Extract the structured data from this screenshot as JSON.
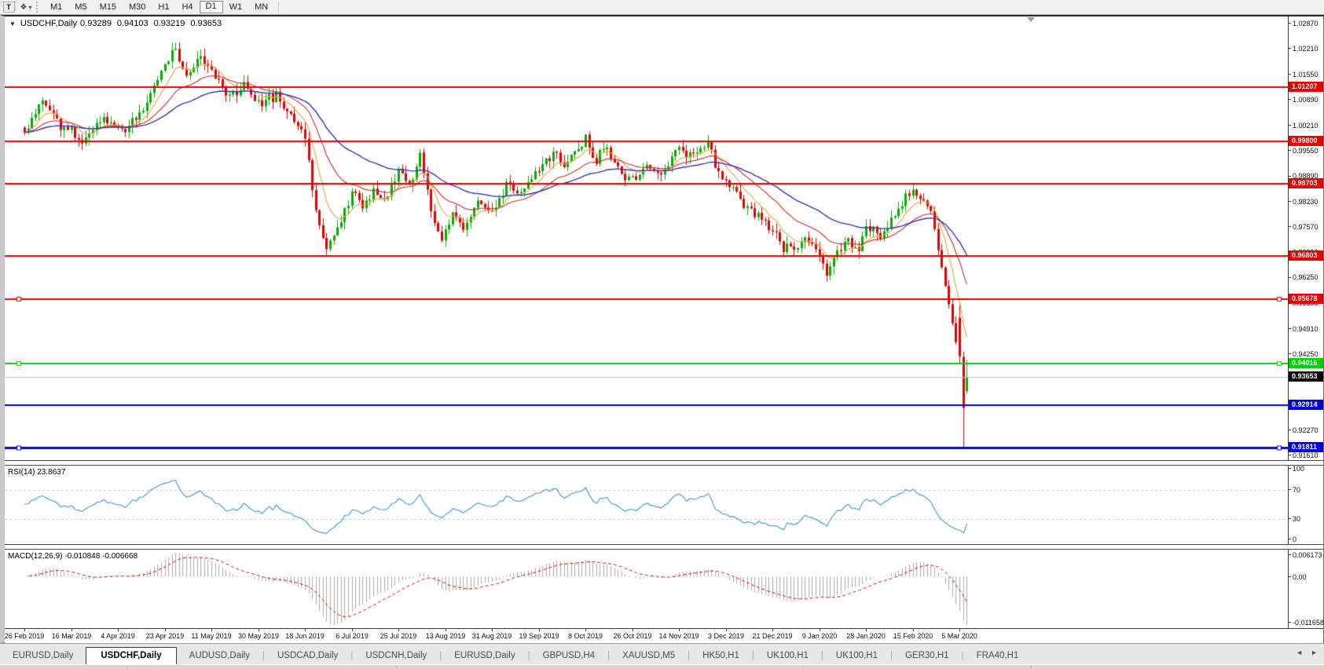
{
  "toolbar": {
    "text_tool_icon": "T",
    "objects_tool_icon": "❖",
    "dropdown_caret_icon": "▾",
    "timeframes": [
      "M1",
      "M5",
      "M15",
      "M30",
      "H1",
      "H4",
      "D1",
      "W1",
      "MN"
    ],
    "active_timeframe": "D1"
  },
  "chart": {
    "collapse_icon": "▼",
    "title_symbol": "USDCHF,Daily",
    "ohlc": {
      "open": "0.93289",
      "high": "0.94103",
      "low": "0.93219",
      "close": "0.93653"
    },
    "price_ticks": [
      "1.02870",
      "1.02210",
      "1.01550",
      "1.00890",
      "1.00210",
      "0.99550",
      "0.98890",
      "0.98230",
      "0.97570",
      "0.96910",
      "0.96250",
      "0.95590",
      "0.94910",
      "0.94250",
      "0.93590",
      "0.92930",
      "0.92270",
      "0.91610"
    ],
    "levels": [
      {
        "label": "1.01207",
        "price": 1.01207,
        "color": "#e60000",
        "width": 2,
        "handles": false
      },
      {
        "label": "0.99800",
        "price": 0.998,
        "color": "#e60000",
        "width": 2,
        "handles": false
      },
      {
        "label": "0.98703",
        "price": 0.98703,
        "color": "#e60000",
        "width": 2,
        "handles": false
      },
      {
        "label": "0.96803",
        "price": 0.96803,
        "color": "#e60000",
        "width": 2,
        "handles": false
      },
      {
        "label": "0.95678",
        "price": 0.95678,
        "color": "#e60000",
        "width": 2,
        "handles": true
      },
      {
        "label": "0.94016",
        "price": 0.94016,
        "color": "#00d200",
        "width": 2,
        "handles": true
      },
      {
        "label": "0.92914",
        "price": 0.92914,
        "color": "#0000d8",
        "width": 2,
        "handles": false
      },
      {
        "label": "0.91811",
        "price": 0.91811,
        "color": "#0000d8",
        "width": 3,
        "handles": true
      }
    ],
    "current_price": {
      "label": "0.93653",
      "price": 0.93653,
      "line_color": "#c0c0c0",
      "badge_color": "#000000"
    },
    "date_ticks": [
      "26 Feb 2019",
      "16 Mar 2019",
      "4 Apr 2019",
      "23 Apr 2019",
      "11 May 2019",
      "30 May 2019",
      "18 Jun 2019",
      "6 Jul 2019",
      "25 Jul 2019",
      "13 Aug 2019",
      "31 Aug 2019",
      "19 Sep 2019",
      "8 Oct 2019",
      "26 Oct 2019",
      "14 Nov 2019",
      "3 Dec 2019",
      "21 Dec 2019",
      "9 Jan 2020",
      "28 Jan 2020",
      "15 Feb 2020",
      "5 Mar 2020"
    ],
    "series": {
      "candle_count": 263,
      "candles_per_tick": 13,
      "close_anchors": [
        [
          0,
          1.0005
        ],
        [
          5,
          1.0085
        ],
        [
          10,
          1.0025
        ],
        [
          16,
          0.9985
        ],
        [
          22,
          1.004
        ],
        [
          28,
          1.0005
        ],
        [
          33,
          1.007
        ],
        [
          38,
          1.017
        ],
        [
          42,
          1.0225
        ],
        [
          45,
          1.015
        ],
        [
          49,
          1.0205
        ],
        [
          53,
          1.015
        ],
        [
          57,
          1.01
        ],
        [
          61,
          1.013
        ],
        [
          65,
          1.0075
        ],
        [
          70,
          1.01
        ],
        [
          75,
          1.004
        ],
        [
          78,
          0.999
        ],
        [
          81,
          0.979
        ],
        [
          84,
          0.97
        ],
        [
          88,
          0.977
        ],
        [
          91,
          0.985
        ],
        [
          94,
          0.98
        ],
        [
          97,
          0.9855
        ],
        [
          100,
          0.9815
        ],
        [
          104,
          0.9905
        ],
        [
          107,
          0.987
        ],
        [
          110,
          0.9945
        ],
        [
          113,
          0.98
        ],
        [
          116,
          0.9715
        ],
        [
          119,
          0.979
        ],
        [
          122,
          0.975
        ],
        [
          126,
          0.9825
        ],
        [
          130,
          0.9795
        ],
        [
          134,
          0.987
        ],
        [
          138,
          0.984
        ],
        [
          143,
          0.9905
        ],
        [
          147,
          0.995
        ],
        [
          150,
          0.991
        ],
        [
          153,
          0.9955
        ],
        [
          156,
          0.9985
        ],
        [
          159,
          0.9935
        ],
        [
          162,
          0.9965
        ],
        [
          165,
          0.9905
        ],
        [
          169,
          0.9875
        ],
        [
          173,
          0.992
        ],
        [
          177,
          0.9895
        ],
        [
          182,
          0.9965
        ],
        [
          186,
          0.9935
        ],
        [
          190,
          0.9985
        ],
        [
          193,
          0.9895
        ],
        [
          197,
          0.9855
        ],
        [
          201,
          0.9805
        ],
        [
          205,
          0.978
        ],
        [
          208,
          0.9745
        ],
        [
          211,
          0.9705
        ],
        [
          214,
          0.969
        ],
        [
          217,
          0.973
        ],
        [
          220,
          0.9695
        ],
        [
          223,
          0.9635
        ],
        [
          226,
          0.9695
        ],
        [
          229,
          0.9725
        ],
        [
          232,
          0.969
        ],
        [
          234,
          0.9765
        ],
        [
          238,
          0.9735
        ],
        [
          241,
          0.9775
        ],
        [
          244,
          0.9825
        ],
        [
          247,
          0.9845
        ],
        [
          250,
          0.983
        ],
        [
          252,
          0.98
        ],
        [
          254,
          0.97
        ],
        [
          256,
          0.9605
        ],
        [
          258,
          0.9505
        ],
        [
          259,
          0.9455
        ]
      ],
      "final_candles": [
        {
          "o": 0.952,
          "h": 0.9555,
          "l": 0.9398,
          "c": 0.942
        },
        {
          "o": 0.9418,
          "h": 0.9432,
          "l": 0.91811,
          "c": 0.9285
        },
        {
          "o": 0.93289,
          "h": 0.94103,
          "l": 0.93219,
          "c": 0.93653
        }
      ],
      "colors": {
        "up": "#00b000",
        "down": "#e60000",
        "ma_fast": "#eba23c",
        "ma_mid": "#cf2a2a",
        "ma_slow": "#3434b8"
      },
      "ma_periods": {
        "fast": 8,
        "mid": 21,
        "slow": 45
      }
    }
  },
  "rsi": {
    "label": "RSI(14) 23.8637",
    "period": 14,
    "value": "23.8637",
    "line_color": "#4d9cd9",
    "level_color": "#c8c8c8",
    "axis_ticks": [
      "100",
      "70",
      "30",
      "0"
    ],
    "levels": [
      70,
      30
    ]
  },
  "macd": {
    "label": "MACD(12,26,9) -0.010848 -0.006668",
    "values": [
      "-0.010848",
      "-0.006668"
    ],
    "axis_top": "0.006173",
    "axis_zero": "0.00",
    "axis_bottom": "-0.011658",
    "histogram_color": "#ababab",
    "signal_color": "#e60000"
  },
  "tabbar": {
    "tabs": [
      {
        "label": "EURUSD,Daily",
        "active": false
      },
      {
        "label": "USDCHF,Daily",
        "active": true
      },
      {
        "label": "AUDUSD,Daily",
        "active": false
      },
      {
        "label": "USDCAD,Daily",
        "active": false
      },
      {
        "label": "USDCNH,Daily",
        "active": false
      },
      {
        "label": "EURUSD,Daily",
        "active": false
      },
      {
        "label": "GBPUSD,H4",
        "active": false
      },
      {
        "label": "XAUUSD,M5",
        "active": false
      },
      {
        "label": "HK50,H1",
        "active": false
      },
      {
        "label": "UK100,H1",
        "active": false
      },
      {
        "label": "UK100,H1",
        "active": false
      },
      {
        "label": "GER30,H1",
        "active": false
      },
      {
        "label": "FRA40,H1",
        "active": false
      }
    ],
    "separator": "|",
    "left_arrow": "◄",
    "right_arrow": "►"
  }
}
